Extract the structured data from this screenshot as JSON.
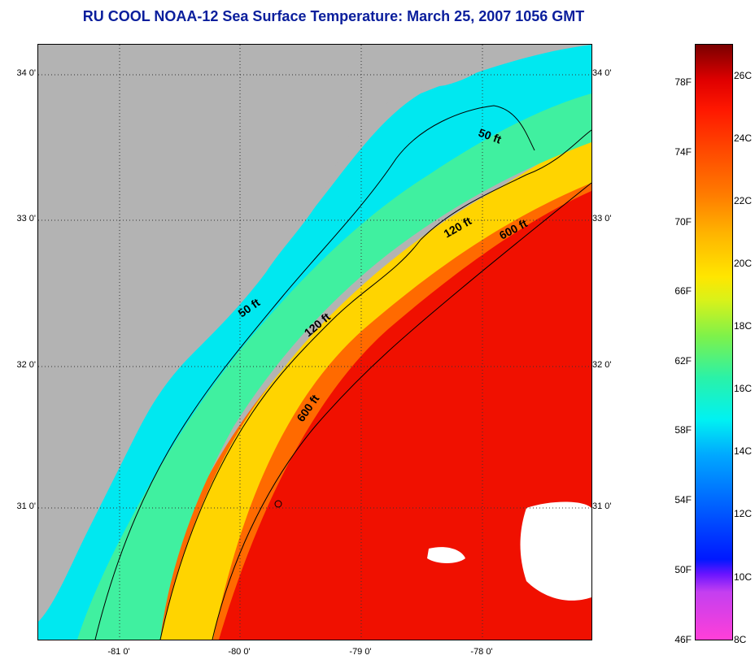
{
  "title": "RU COOL  NOAA-12  Sea Surface Temperature:  March 25, 2007 1056 GMT",
  "latitude_labels": [
    "34 0'",
    "33 0'",
    "32 0'",
    "31 0'"
  ],
  "longitude_labels": [
    "-81 0'",
    "-80 0'",
    "-79 0'",
    "-78 0'"
  ],
  "contour_labels": {
    "north_50": "50 ft",
    "south_50": "50 ft",
    "north_120": "120 ft",
    "south_120": "120 ft",
    "north_600": "600 ft",
    "south_600": "600 ft"
  },
  "colorbar": {
    "fahrenheit_labels": [
      "78F",
      "74F",
      "70F",
      "66F",
      "62F",
      "58F",
      "54F",
      "50F",
      "46F"
    ],
    "celsius_labels": [
      "26C",
      "24C",
      "22C",
      "20C",
      "18C",
      "16C",
      "14C",
      "12C",
      "10C",
      "8C"
    ],
    "colors": {
      "land": "#b3b3b3",
      "cold_shelf": "#00e8f0",
      "mid_shelf": "#f0e000",
      "gulf_stream": "#f01000",
      "clouds": "#ffffff"
    }
  }
}
